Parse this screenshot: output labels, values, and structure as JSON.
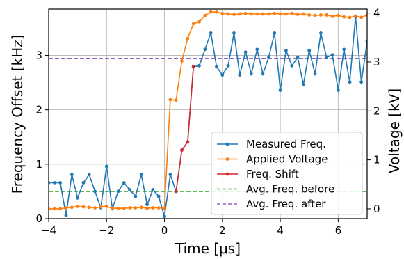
{
  "chart_data": {
    "type": "line",
    "title": "",
    "xlabel": "Time [μs]",
    "ylabel": "Frequency Offset [kHz]",
    "y2label": "Voltage [kV]",
    "xlim": [
      -4,
      7
    ],
    "ylim": [
      0,
      3.85
    ],
    "y2lim": [
      -0.2,
      4.08
    ],
    "xticks": [
      -4,
      -2,
      0,
      2,
      4,
      6
    ],
    "yticks": [
      0,
      1,
      2,
      3
    ],
    "y2ticks": [
      0,
      1,
      2,
      3,
      4
    ],
    "grid": true,
    "legend_position": "lower-right",
    "series": [
      {
        "name": "Measured Freq.",
        "axis": "left",
        "color": "#1f77b4",
        "x": [
          -4.0,
          -3.8,
          -3.6,
          -3.4,
          -3.2,
          -3.0,
          -2.8,
          -2.6,
          -2.4,
          -2.2,
          -2.0,
          -1.8,
          -1.6,
          -1.4,
          -1.2,
          -1.0,
          -0.8,
          -0.6,
          -0.4,
          -0.2,
          0.0,
          0.2,
          0.4,
          0.6,
          0.8,
          1.0,
          1.2,
          1.4,
          1.6,
          1.8,
          2.0,
          2.2,
          2.4,
          2.6,
          2.8,
          3.0,
          3.2,
          3.4,
          3.6,
          3.8,
          4.0,
          4.2,
          4.4,
          4.6,
          4.8,
          5.0,
          5.2,
          5.4,
          5.6,
          5.8,
          6.0,
          6.2,
          6.4,
          6.6,
          6.8,
          7.0
        ],
        "values": [
          0.66,
          0.66,
          0.66,
          0.06,
          0.81,
          0.38,
          0.66,
          0.81,
          0.5,
          0.2,
          0.96,
          0.18,
          0.5,
          0.66,
          0.53,
          0.41,
          0.81,
          0.26,
          0.53,
          0.41,
          0.04,
          0.81,
          0.5,
          1.26,
          1.41,
          2.79,
          2.81,
          3.11,
          3.41,
          2.79,
          2.64,
          2.81,
          3.41,
          2.64,
          3.06,
          2.66,
          3.11,
          2.66,
          2.96,
          3.41,
          2.36,
          3.09,
          2.81,
          2.96,
          2.46,
          3.09,
          2.66,
          3.41,
          2.96,
          3.01,
          2.36,
          3.11,
          2.51,
          3.71,
          2.51,
          3.26
        ]
      },
      {
        "name": "Applied Voltage",
        "axis": "right",
        "color": "#ff7f0e",
        "x": [
          -4.0,
          -3.8,
          -3.6,
          -3.4,
          -3.2,
          -3.0,
          -2.8,
          -2.6,
          -2.4,
          -2.2,
          -2.0,
          -1.8,
          -1.6,
          -1.4,
          -1.2,
          -1.0,
          -0.8,
          -0.6,
          -0.4,
          -0.2,
          0.0,
          0.2,
          0.4,
          0.6,
          0.8,
          1.0,
          1.2,
          1.4,
          1.6,
          1.8,
          2.0,
          2.2,
          2.4,
          2.6,
          2.8,
          3.0,
          3.2,
          3.4,
          3.6,
          3.8,
          4.0,
          4.2,
          4.4,
          4.6,
          4.8,
          5.0,
          5.2,
          5.4,
          5.6,
          5.8,
          6.0,
          6.2,
          6.4,
          6.6,
          6.8,
          7.0
        ],
        "values": [
          0.0,
          0.0,
          0.0,
          0.02,
          0.03,
          0.05,
          0.04,
          0.03,
          0.02,
          0.04,
          0.05,
          0.01,
          0.01,
          0.01,
          0.02,
          0.02,
          0.03,
          0.01,
          0.02,
          0.02,
          0.01,
          2.23,
          2.22,
          3.02,
          3.48,
          3.78,
          3.82,
          3.95,
          4.02,
          4.02,
          3.99,
          3.98,
          3.97,
          3.98,
          3.99,
          3.98,
          3.98,
          3.98,
          3.98,
          3.99,
          3.98,
          3.98,
          3.99,
          3.97,
          3.98,
          3.96,
          3.95,
          3.96,
          3.96,
          3.93,
          3.95,
          3.92,
          3.91,
          3.94,
          3.91,
          3.96
        ]
      },
      {
        "name": "Freq. Shift",
        "axis": "left",
        "color": "#d62728",
        "x": [
          0.4,
          0.6,
          0.8,
          1.0
        ],
        "values": [
          0.5,
          1.26,
          1.41,
          2.79
        ]
      },
      {
        "name": "Avg. Freq. before",
        "axis": "left",
        "color": "#2ca02c",
        "dashed": true,
        "constant": 0.5
      },
      {
        "name": "Avg. Freq. after",
        "axis": "left",
        "color": "#9467bd",
        "dashed": true,
        "constant": 2.94
      }
    ]
  }
}
